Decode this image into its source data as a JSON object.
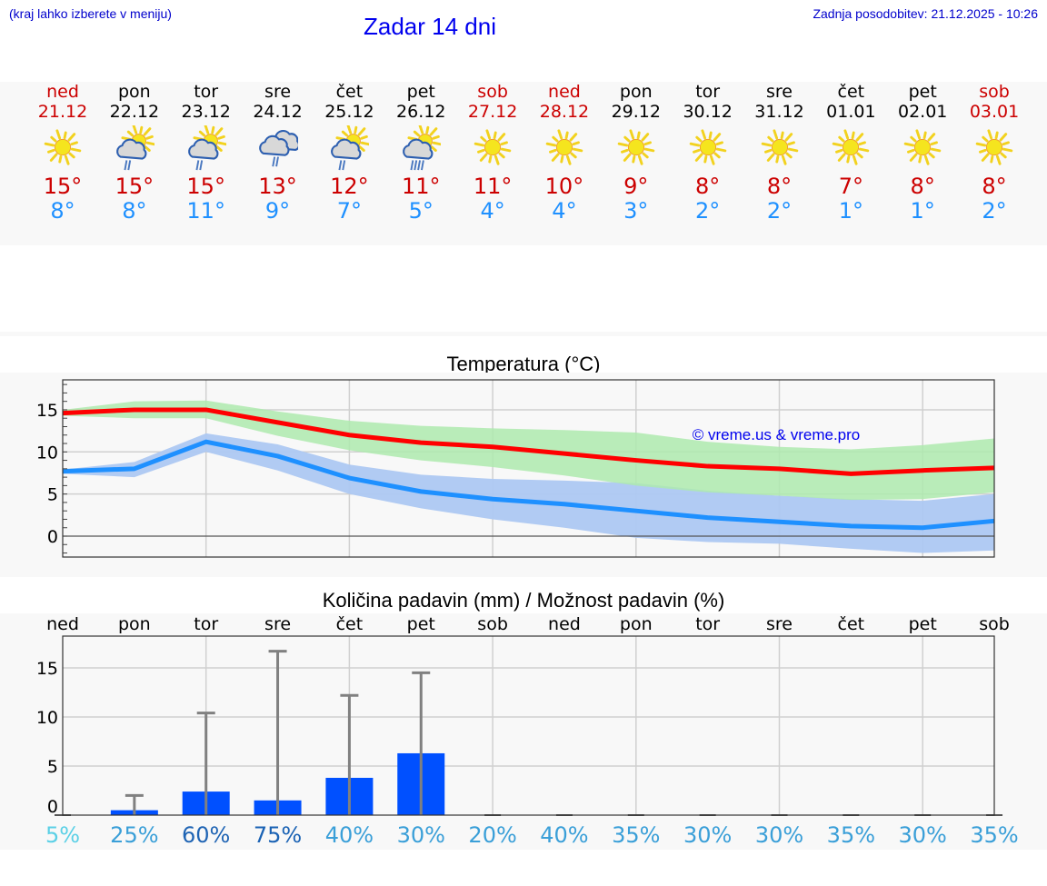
{
  "header": {
    "hint": "(kraj lahko izberete v meniju)",
    "title": "Zadar 14 dni",
    "updated": "Zadnja posodobitev: 21.12.2025 - 10:26"
  },
  "colors": {
    "weekend": "#cc0000",
    "weekday": "#000000",
    "tmax": "#cc0000",
    "tmin": "#1e90ff",
    "max_line": "#ff0000",
    "max_band": "#aeeaae",
    "min_line": "#1e90ff",
    "min_band": "#adc8f2",
    "bar": "#0050ff",
    "whisker": "#808080",
    "header_text": "#0000cc"
  },
  "days": [
    {
      "name": "ned",
      "date": "21.12",
      "weekend": true,
      "icon": "sunny-icon",
      "tmax": "15°",
      "tmin": "8°"
    },
    {
      "name": "pon",
      "date": "22.12",
      "weekend": false,
      "icon": "sun-cloud-rain-icon",
      "tmax": "15°",
      "tmin": "8°"
    },
    {
      "name": "tor",
      "date": "23.12",
      "weekend": false,
      "icon": "sun-cloud-rain-icon",
      "tmax": "15°",
      "tmin": "11°"
    },
    {
      "name": "sre",
      "date": "24.12",
      "weekend": false,
      "icon": "cloudy-rain-icon",
      "tmax": "13°",
      "tmin": "9°"
    },
    {
      "name": "čet",
      "date": "25.12",
      "weekend": false,
      "icon": "sun-cloud-rain-icon",
      "tmax": "12°",
      "tmin": "7°"
    },
    {
      "name": "pet",
      "date": "26.12",
      "weekend": false,
      "icon": "sun-cloud-heavy-rain-icon",
      "tmax": "11°",
      "tmin": "5°"
    },
    {
      "name": "sob",
      "date": "27.12",
      "weekend": true,
      "icon": "sunny-icon",
      "tmax": "11°",
      "tmin": "4°"
    },
    {
      "name": "ned",
      "date": "28.12",
      "weekend": true,
      "icon": "sunny-icon",
      "tmax": "10°",
      "tmin": "4°"
    },
    {
      "name": "pon",
      "date": "29.12",
      "weekend": false,
      "icon": "sunny-icon",
      "tmax": "9°",
      "tmin": "3°"
    },
    {
      "name": "tor",
      "date": "30.12",
      "weekend": false,
      "icon": "sunny-icon",
      "tmax": "8°",
      "tmin": "2°"
    },
    {
      "name": "sre",
      "date": "31.12",
      "weekend": false,
      "icon": "sunny-icon",
      "tmax": "8°",
      "tmin": "2°"
    },
    {
      "name": "čet",
      "date": "01.01",
      "weekend": false,
      "icon": "sunny-icon",
      "tmax": "7°",
      "tmin": "1°"
    },
    {
      "name": "pet",
      "date": "02.01",
      "weekend": false,
      "icon": "sunny-icon",
      "tmax": "8°",
      "tmin": "1°"
    },
    {
      "name": "sob",
      "date": "03.01",
      "weekend": true,
      "icon": "sunny-icon",
      "tmax": "8°",
      "tmin": "2°"
    }
  ],
  "chart_data": [
    {
      "type": "line",
      "title": "Temperatura (°C)",
      "xlabel": "",
      "ylabel": "",
      "ylim": [
        -2.5,
        18.5
      ],
      "yticks": [
        0,
        5,
        10,
        15
      ],
      "grid": true,
      "legend": null,
      "annotation": "© vreme.us & vreme.pro",
      "categories": [
        "21.12",
        "22.12",
        "23.12",
        "24.12",
        "25.12",
        "26.12",
        "27.12",
        "28.12",
        "29.12",
        "30.12",
        "31.12",
        "01.01",
        "02.01",
        "03.01"
      ],
      "series": [
        {
          "name": "Tmax",
          "color": "#ff0000",
          "values": [
            14.6,
            15.0,
            15.0,
            13.5,
            12.0,
            11.1,
            10.6,
            9.8,
            9.0,
            8.3,
            8.0,
            7.4,
            7.8,
            8.1
          ]
        },
        {
          "name": "Tmax range low",
          "values": [
            14.3,
            14.0,
            14.0,
            11.9,
            10.2,
            9.0,
            8.2,
            7.2,
            6.0,
            5.2,
            4.8,
            4.3,
            4.4,
            5.2
          ]
        },
        {
          "name": "Tmax range high",
          "values": [
            15.0,
            16.0,
            16.1,
            14.8,
            13.7,
            13.1,
            12.8,
            12.6,
            12.3,
            11.2,
            10.6,
            10.3,
            10.8,
            11.6
          ]
        },
        {
          "name": "Tmin",
          "color": "#1e90ff",
          "values": [
            7.7,
            8.0,
            11.2,
            9.5,
            6.9,
            5.3,
            4.4,
            3.8,
            3.0,
            2.2,
            1.7,
            1.2,
            1.0,
            1.8
          ]
        },
        {
          "name": "Tmin range low",
          "values": [
            7.4,
            7.0,
            10.0,
            7.8,
            5.0,
            3.3,
            2.0,
            1.0,
            -0.2,
            -0.7,
            -0.9,
            -1.5,
            -2.0,
            -1.7
          ]
        },
        {
          "name": "Tmin range high",
          "values": [
            7.9,
            8.8,
            12.2,
            10.9,
            8.5,
            7.3,
            6.8,
            6.6,
            6.3,
            5.4,
            4.8,
            4.4,
            4.2,
            5.0
          ]
        }
      ]
    },
    {
      "type": "bar",
      "title": "Količina padavin (mm) / Možnost padavin (%)",
      "xlabel": "",
      "ylabel": "",
      "ylim": [
        0,
        18.2
      ],
      "yticks": [
        0,
        5,
        10,
        15
      ],
      "grid": true,
      "categories": [
        "ned",
        "pon",
        "tor",
        "sre",
        "čet",
        "pet",
        "sob",
        "ned",
        "pon",
        "tor",
        "sre",
        "čet",
        "pet",
        "sob"
      ],
      "series": [
        {
          "name": "Količina padavin (mm)",
          "color": "#0050ff",
          "values": [
            0,
            0.5,
            2.4,
            1.5,
            3.8,
            6.3,
            0,
            0,
            0,
            0,
            0,
            0,
            0,
            0
          ]
        },
        {
          "name": "Max padavin (mm)",
          "color": "#808080",
          "values": [
            0,
            2.0,
            10.4,
            16.7,
            12.2,
            14.5,
            0,
            0,
            0,
            0,
            0,
            0,
            0,
            0
          ]
        }
      ],
      "probability": [
        "5%",
        "25%",
        "60%",
        "75%",
        "40%",
        "30%",
        "20%",
        "40%",
        "35%",
        "30%",
        "30%",
        "35%",
        "30%",
        "35%"
      ],
      "probability_colors": [
        "#5bd0e6",
        "#3a9fd8",
        "#1f64b4",
        "#1a62b4",
        "#3a9fd8",
        "#3a9fd8",
        "#3a9fd8",
        "#3a9fd8",
        "#3a9fd8",
        "#3a9fd8",
        "#3a9fd8",
        "#3a9fd8",
        "#3a9fd8",
        "#3a9fd8"
      ]
    }
  ]
}
